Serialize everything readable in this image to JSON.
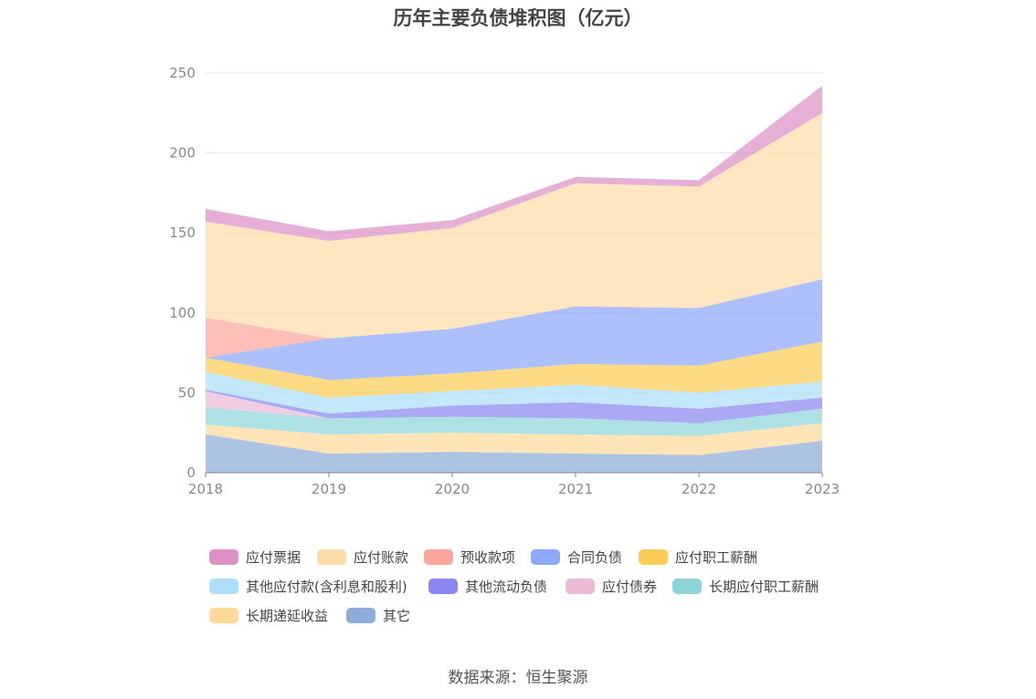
{
  "title": "历年主要负债堆积图（亿元）",
  "source": "数据来源：恒生聚源",
  "chart_data": {
    "type": "area",
    "stacked": true,
    "categories": [
      "2018",
      "2019",
      "2020",
      "2021",
      "2022",
      "2023"
    ],
    "ylim": [
      0,
      250
    ],
    "yticks": [
      0,
      50,
      100,
      150,
      200,
      250
    ],
    "grid": true,
    "legend_position": "bottom",
    "series": [
      {
        "name": "其它",
        "color": "#8eacd8",
        "values": [
          24,
          12,
          13,
          12,
          11,
          20
        ]
      },
      {
        "name": "长期递延收益",
        "color": "#fed99a",
        "values": [
          6,
          12,
          12,
          12,
          12,
          11
        ]
      },
      {
        "name": "长期应付职工薪酬",
        "color": "#8ed5d9",
        "values": [
          11,
          10,
          10,
          10,
          8,
          9
        ]
      },
      {
        "name": "应付债券",
        "color": "#ecbad6",
        "values": [
          10,
          0,
          0,
          0,
          0,
          0
        ]
      },
      {
        "name": "其他流动负债",
        "color": "#8a88f0",
        "values": [
          1,
          3,
          7,
          10,
          9,
          7
        ]
      },
      {
        "name": "其他应付款(含利息和股利)",
        "color": "#acdff9",
        "values": [
          11,
          10,
          9,
          11,
          10,
          10
        ]
      },
      {
        "name": "应付职工薪酬",
        "color": "#fccd55",
        "values": [
          9,
          11,
          11,
          13,
          17,
          25
        ]
      },
      {
        "name": "合同负债",
        "color": "#8ea8fa",
        "values": [
          0,
          26,
          28,
          36,
          36,
          39
        ]
      },
      {
        "name": "预收款项",
        "color": "#fca69c",
        "values": [
          25,
          0,
          0,
          0,
          0,
          0
        ]
      },
      {
        "name": "应付账款",
        "color": "#fedca7",
        "values": [
          60,
          61,
          63,
          77,
          76,
          104
        ]
      },
      {
        "name": "应付票据",
        "color": "#dd92c6",
        "values": [
          8,
          6,
          5,
          4,
          4,
          17
        ]
      }
    ],
    "legend_order": [
      "应付票据",
      "应付账款",
      "预收款项",
      "合同负债",
      "应付职工薪酬",
      "其他应付款(含利息和股利)",
      "其他流动负债",
      "应付债券",
      "长期应付职工薪酬",
      "长期递延收益",
      "其它"
    ]
  }
}
